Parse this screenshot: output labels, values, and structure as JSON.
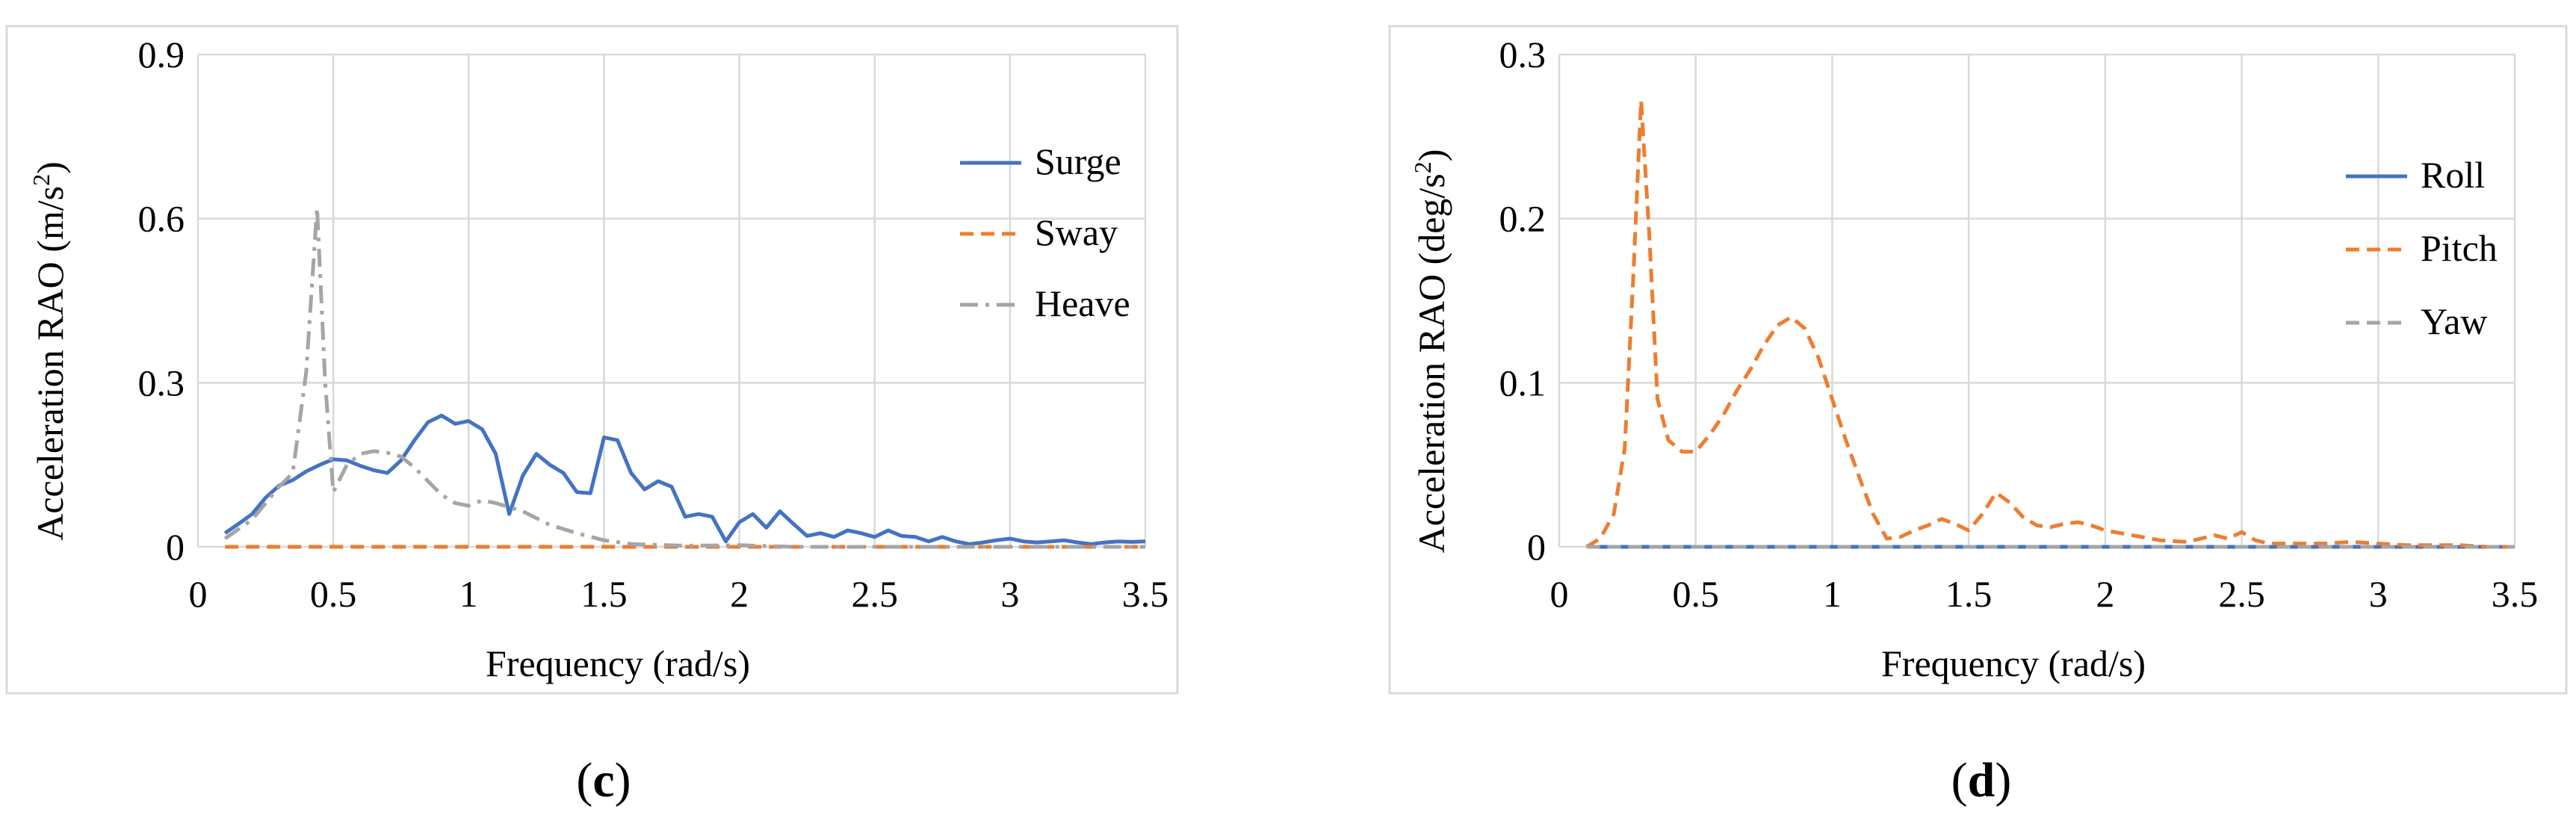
{
  "chart_data": [
    {
      "type": "line",
      "panel_label": "(c)",
      "panel_letter": "c",
      "xlabel": "Frequency (rad/s)",
      "ylabel": "Acceleration RAO (m/s",
      "ylabel_sup": "2",
      "ylabel_close": ")",
      "xlim": [
        0,
        3.5
      ],
      "ylim": [
        0,
        0.9
      ],
      "xticks": [
        "0",
        "0.5",
        "1",
        "1.5",
        "2",
        "2.5",
        "3",
        "3.5"
      ],
      "yticks": [
        "0",
        "0.3",
        "0.6",
        "0.9"
      ],
      "grid": true,
      "legend_position": "right",
      "series": [
        {
          "name": "Surge",
          "style": "solid",
          "color": "#4472C4",
          "x": [
            0.1,
            0.15,
            0.2,
            0.25,
            0.3,
            0.35,
            0.4,
            0.45,
            0.5,
            0.55,
            0.6,
            0.65,
            0.7,
            0.75,
            0.8,
            0.85,
            0.9,
            0.95,
            1.0,
            1.05,
            1.1,
            1.15,
            1.2,
            1.25,
            1.3,
            1.35,
            1.4,
            1.45,
            1.5,
            1.55,
            1.6,
            1.65,
            1.7,
            1.75,
            1.8,
            1.85,
            1.9,
            1.95,
            2.0,
            2.05,
            2.1,
            2.15,
            2.2,
            2.25,
            2.3,
            2.35,
            2.4,
            2.45,
            2.5,
            2.55,
            2.6,
            2.65,
            2.7,
            2.75,
            2.8,
            2.85,
            2.9,
            2.95,
            3.0,
            3.05,
            3.1,
            3.15,
            3.2,
            3.25,
            3.3,
            3.35,
            3.4,
            3.45,
            3.5
          ],
          "y": [
            0.025,
            0.042,
            0.06,
            0.09,
            0.112,
            0.122,
            0.138,
            0.15,
            0.16,
            0.158,
            0.148,
            0.14,
            0.135,
            0.158,
            0.195,
            0.228,
            0.24,
            0.225,
            0.23,
            0.215,
            0.17,
            0.06,
            0.13,
            0.17,
            0.15,
            0.135,
            0.1,
            0.098,
            0.2,
            0.195,
            0.135,
            0.105,
            0.12,
            0.11,
            0.055,
            0.06,
            0.055,
            0.01,
            0.045,
            0.06,
            0.035,
            0.065,
            0.042,
            0.02,
            0.025,
            0.018,
            0.03,
            0.025,
            0.018,
            0.03,
            0.02,
            0.018,
            0.01,
            0.018,
            0.01,
            0.005,
            0.008,
            0.012,
            0.015,
            0.01,
            0.008,
            0.01,
            0.012,
            0.008,
            0.005,
            0.008,
            0.01,
            0.009,
            0.01
          ]
        },
        {
          "name": "Sway",
          "style": "dashed",
          "color": "#ED7D31",
          "x": [
            0.1,
            3.5
          ],
          "y": [
            0.0,
            0.0
          ]
        },
        {
          "name": "Heave",
          "style": "dashdot",
          "color": "#A5A5A5",
          "x": [
            0.1,
            0.2,
            0.3,
            0.35,
            0.4,
            0.44,
            0.47,
            0.5,
            0.55,
            0.6,
            0.65,
            0.7,
            0.75,
            0.8,
            0.85,
            0.9,
            0.95,
            1.0,
            1.05,
            1.1,
            1.2,
            1.3,
            1.4,
            1.5,
            1.6,
            1.8,
            2.0,
            2.2,
            2.5,
            3.0,
            3.5
          ],
          "y": [
            0.015,
            0.05,
            0.11,
            0.135,
            0.32,
            0.62,
            0.3,
            0.1,
            0.15,
            0.17,
            0.175,
            0.172,
            0.165,
            0.145,
            0.12,
            0.095,
            0.08,
            0.075,
            0.085,
            0.08,
            0.065,
            0.04,
            0.025,
            0.012,
            0.005,
            0.002,
            0.003,
            0.0,
            0.0,
            0.0,
            0.0
          ]
        }
      ]
    },
    {
      "type": "line",
      "panel_label": "(d)",
      "panel_letter": "d",
      "xlabel": "Frequency (rad/s)",
      "ylabel": "Acceleration RAO (deg/s",
      "ylabel_sup": "2",
      "ylabel_close": ")",
      "xlim": [
        0,
        3.5
      ],
      "ylim": [
        0,
        0.3
      ],
      "xticks": [
        "0",
        "0.5",
        "1",
        "1.5",
        "2",
        "2.5",
        "3",
        "3.5"
      ],
      "yticks": [
        "0",
        "0.1",
        "0.2",
        "0.3"
      ],
      "grid": true,
      "legend_position": "right",
      "series": [
        {
          "name": "Roll",
          "style": "solid",
          "color": "#4472C4",
          "x": [
            0.1,
            3.5
          ],
          "y": [
            0.0,
            0.0
          ]
        },
        {
          "name": "Pitch",
          "style": "dashed",
          "color": "#ED7D31",
          "x": [
            0.1,
            0.15,
            0.2,
            0.24,
            0.27,
            0.3,
            0.33,
            0.36,
            0.4,
            0.45,
            0.5,
            0.55,
            0.6,
            0.65,
            0.7,
            0.75,
            0.8,
            0.85,
            0.9,
            0.95,
            1.0,
            1.05,
            1.1,
            1.15,
            1.2,
            1.25,
            1.3,
            1.35,
            1.4,
            1.45,
            1.5,
            1.55,
            1.6,
            1.65,
            1.7,
            1.75,
            1.8,
            1.85,
            1.9,
            1.95,
            2.0,
            2.1,
            2.2,
            2.3,
            2.4,
            2.45,
            2.5,
            2.55,
            2.6,
            2.7,
            2.8,
            2.9,
            3.0,
            3.1,
            3.2,
            3.3,
            3.4,
            3.5
          ],
          "y": [
            0.0,
            0.005,
            0.02,
            0.06,
            0.16,
            0.272,
            0.19,
            0.09,
            0.065,
            0.058,
            0.058,
            0.068,
            0.08,
            0.095,
            0.108,
            0.123,
            0.135,
            0.14,
            0.133,
            0.115,
            0.09,
            0.065,
            0.042,
            0.02,
            0.005,
            0.006,
            0.01,
            0.013,
            0.017,
            0.014,
            0.01,
            0.02,
            0.033,
            0.027,
            0.018,
            0.013,
            0.012,
            0.014,
            0.015,
            0.013,
            0.01,
            0.007,
            0.004,
            0.003,
            0.007,
            0.005,
            0.009,
            0.004,
            0.002,
            0.002,
            0.002,
            0.003,
            0.002,
            0.001,
            0.001,
            0.001,
            0.0,
            0.0
          ]
        },
        {
          "name": "Yaw",
          "style": "dashed",
          "color": "#A5A5A5",
          "x": [
            0.1,
            3.5
          ],
          "y": [
            0.0,
            0.0
          ]
        }
      ]
    }
  ]
}
